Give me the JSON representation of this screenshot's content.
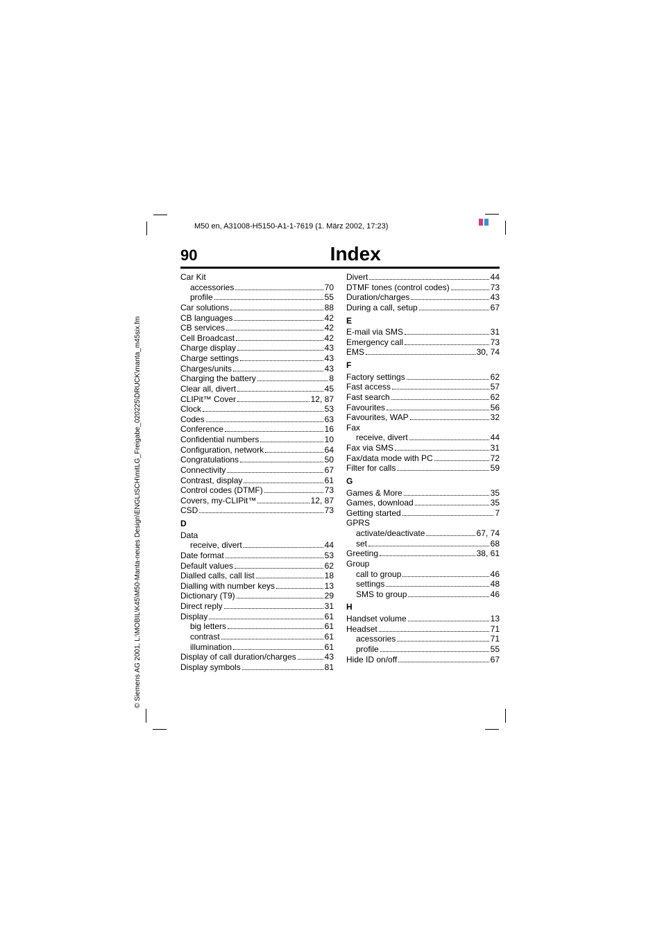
{
  "meta": {
    "file_line": "M50 en, A31008-H5150-A1-1-7619 (1. März 2002, 17:23)",
    "copyright": "© Siemens AG 2001, L:\\MOBIL\\K45\\M50-Manta-neues Design\\ENGLISCH\\mitLG_Freigabe_020225\\DRUCK\\manta_m45six.fm",
    "page_number": "90",
    "title": "Index",
    "colors": {
      "text": "#000000",
      "background": "#ffffff",
      "rule": "#000000",
      "reg_cyan": "#3a90d8",
      "reg_magenta": "#d23a86"
    },
    "fonts": {
      "body_size_pt": 9,
      "title_size_pt": 22,
      "page_num_size_pt": 16,
      "family": "sans-serif"
    }
  },
  "columns": [
    {
      "items": [
        {
          "type": "head",
          "label": "Car Kit"
        },
        {
          "type": "sub",
          "label": "accessories",
          "page": "70"
        },
        {
          "type": "sub",
          "label": "profile",
          "page": "55"
        },
        {
          "type": "entry",
          "label": "Car solutions",
          "page": "88"
        },
        {
          "type": "entry",
          "label": "CB languages",
          "page": "42"
        },
        {
          "type": "entry",
          "label": "CB services",
          "page": "42"
        },
        {
          "type": "entry",
          "label": "Cell Broadcast",
          "page": "42"
        },
        {
          "type": "entry",
          "label": "Charge display",
          "page": "43"
        },
        {
          "type": "entry",
          "label": "Charge settings",
          "page": "43"
        },
        {
          "type": "entry",
          "label": "Charges/units",
          "page": "43"
        },
        {
          "type": "entry",
          "label": "Charging the battery",
          "page": "8"
        },
        {
          "type": "entry",
          "label": "Clear all, divert",
          "page": "45"
        },
        {
          "type": "entry",
          "label": "CLIPit™ Cover",
          "page": "12, 87"
        },
        {
          "type": "entry",
          "label": "Clock",
          "page": "53"
        },
        {
          "type": "entry",
          "label": "Codes",
          "page": "63"
        },
        {
          "type": "entry",
          "label": "Conference",
          "page": "16"
        },
        {
          "type": "entry",
          "label": "Confidential numbers",
          "page": "10"
        },
        {
          "type": "entry",
          "label": "Configuration, network",
          "page": "64"
        },
        {
          "type": "entry",
          "label": "Congratulations",
          "page": "50"
        },
        {
          "type": "entry",
          "label": "Connectivity",
          "page": "67"
        },
        {
          "type": "entry",
          "label": "Contrast, display",
          "page": "61"
        },
        {
          "type": "entry",
          "label": "Control codes (DTMF)",
          "page": "73"
        },
        {
          "type": "entry",
          "label": "Covers, my-CLIPit™",
          "page": "12, 87"
        },
        {
          "type": "entry",
          "label": "CSD",
          "page": "73"
        },
        {
          "type": "letter",
          "label": "D"
        },
        {
          "type": "head",
          "label": "Data"
        },
        {
          "type": "sub",
          "label": "receive, divert",
          "page": "44"
        },
        {
          "type": "entry",
          "label": "Date format",
          "page": "53"
        },
        {
          "type": "entry",
          "label": "Default values",
          "page": "62"
        },
        {
          "type": "entry",
          "label": "Dialled calls, call list",
          "page": "18"
        },
        {
          "type": "entry",
          "label": "Dialling with number keys",
          "page": "13"
        },
        {
          "type": "entry",
          "label": "Dictionary (T9)",
          "page": "29"
        },
        {
          "type": "entry",
          "label": "Direct reply",
          "page": "31"
        },
        {
          "type": "entry",
          "label": "Display",
          "page": "61"
        },
        {
          "type": "sub",
          "label": "big letters",
          "page": "61"
        },
        {
          "type": "sub",
          "label": "contrast",
          "page": "61"
        },
        {
          "type": "sub",
          "label": "illumination",
          "page": "61"
        },
        {
          "type": "entry",
          "label": "Display of call duration/charges",
          "page": "43"
        },
        {
          "type": "entry",
          "label": "Display symbols",
          "page": "81"
        }
      ]
    },
    {
      "items": [
        {
          "type": "entry",
          "label": "Divert",
          "page": "44"
        },
        {
          "type": "entry",
          "label": "DTMF tones (control codes)",
          "page": "73"
        },
        {
          "type": "entry",
          "label": "Duration/charges",
          "page": "43"
        },
        {
          "type": "entry",
          "label": "During a call, setup",
          "page": "67"
        },
        {
          "type": "letter",
          "label": "E"
        },
        {
          "type": "entry",
          "label": "E-mail via SMS",
          "page": "31"
        },
        {
          "type": "entry",
          "label": "Emergency call",
          "page": "73"
        },
        {
          "type": "entry",
          "label": "EMS",
          "page": "30, 74"
        },
        {
          "type": "letter",
          "label": "F"
        },
        {
          "type": "entry",
          "label": "Factory settings",
          "page": "62"
        },
        {
          "type": "entry",
          "label": "Fast access",
          "page": "57"
        },
        {
          "type": "entry",
          "label": "Fast search",
          "page": "62"
        },
        {
          "type": "entry",
          "label": "Favourites",
          "page": "56"
        },
        {
          "type": "entry",
          "label": "Favourites, WAP",
          "page": "32"
        },
        {
          "type": "head",
          "label": "Fax"
        },
        {
          "type": "sub",
          "label": "receive, divert",
          "page": "44"
        },
        {
          "type": "entry",
          "label": "Fax via SMS",
          "page": "31"
        },
        {
          "type": "entry",
          "label": "Fax/data mode with PC",
          "page": "72"
        },
        {
          "type": "entry",
          "label": "Filter for calls",
          "page": "59"
        },
        {
          "type": "letter",
          "label": "G"
        },
        {
          "type": "entry",
          "label": "Games & More",
          "page": "35"
        },
        {
          "type": "entry",
          "label": "Games, download",
          "page": "35"
        },
        {
          "type": "entry",
          "label": "Getting started",
          "page": "7"
        },
        {
          "type": "head",
          "label": "GPRS"
        },
        {
          "type": "sub",
          "label": "activate/deactivate",
          "page": "67, 74"
        },
        {
          "type": "sub",
          "label": "set",
          "page": "68"
        },
        {
          "type": "entry",
          "label": "Greeting",
          "page": "38, 61"
        },
        {
          "type": "head",
          "label": "Group"
        },
        {
          "type": "sub",
          "label": "call to group",
          "page": "46"
        },
        {
          "type": "sub",
          "label": "settings",
          "page": "48"
        },
        {
          "type": "sub",
          "label": "SMS to group",
          "page": "46"
        },
        {
          "type": "letter",
          "label": "H"
        },
        {
          "type": "entry",
          "label": "Handset volume",
          "page": "13"
        },
        {
          "type": "entry",
          "label": "Headset",
          "page": "71"
        },
        {
          "type": "sub",
          "label": "acessories",
          "page": "71"
        },
        {
          "type": "sub",
          "label": "profile",
          "page": "55"
        },
        {
          "type": "entry",
          "label": "Hide ID on/off",
          "page": "67"
        }
      ]
    }
  ]
}
